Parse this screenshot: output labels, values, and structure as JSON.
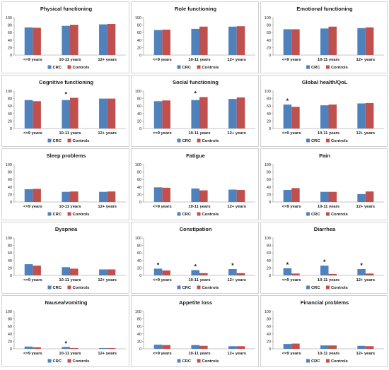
{
  "chart_data": [
    {
      "type": "bar",
      "title": "Physical functioning",
      "categories": [
        "<=9 years",
        "10-11 years",
        "12+ years"
      ],
      "series": [
        {
          "name": "CRC",
          "values": [
            74,
            78,
            82
          ]
        },
        {
          "name": "Controls",
          "values": [
            73,
            81,
            83
          ]
        }
      ],
      "ylim": [
        0,
        100
      ],
      "yticks": [
        0,
        20,
        40,
        60,
        80,
        100
      ],
      "significant": [],
      "legend": "bottom",
      "grid": false
    },
    {
      "type": "bar",
      "title": "Role functioning",
      "categories": [
        "<=9 years",
        "10-11 years",
        "12+ years"
      ],
      "series": [
        {
          "name": "CRC",
          "values": [
            67,
            70,
            76
          ]
        },
        {
          "name": "Controls",
          "values": [
            68,
            76,
            77
          ]
        }
      ],
      "ylim": [
        0,
        100
      ],
      "yticks": [
        0,
        20,
        40,
        60,
        80,
        100
      ],
      "significant": [],
      "legend": "bottom",
      "grid": false
    },
    {
      "type": "bar",
      "title": "Emotional functioning",
      "categories": [
        "<=9 years",
        "10-11 years",
        "12+ years"
      ],
      "series": [
        {
          "name": "CRC",
          "values": [
            69,
            71,
            72
          ]
        },
        {
          "name": "Controls",
          "values": [
            69,
            76,
            74
          ]
        }
      ],
      "ylim": [
        0,
        100
      ],
      "yticks": [
        0,
        20,
        40,
        60,
        80,
        100
      ],
      "significant": [],
      "legend": "bottom",
      "grid": false
    },
    {
      "type": "bar",
      "title": "Cognitive functioning",
      "categories": [
        "<=9 years",
        "10-11 years",
        "12+ years"
      ],
      "series": [
        {
          "name": "CRC",
          "values": [
            76,
            76,
            80
          ]
        },
        {
          "name": "Controls",
          "values": [
            73,
            82,
            80
          ]
        }
      ],
      "ylim": [
        0,
        100
      ],
      "yticks": [
        0,
        20,
        40,
        60,
        80,
        100
      ],
      "significant": [
        1
      ],
      "legend": "bottom",
      "grid": false
    },
    {
      "type": "bar",
      "title": "Social functioning",
      "categories": [
        "<=9 years",
        "10-11 years",
        "12+ years"
      ],
      "series": [
        {
          "name": "CRC",
          "values": [
            73,
            76,
            79
          ]
        },
        {
          "name": "Controls",
          "values": [
            75,
            84,
            83
          ]
        }
      ],
      "ylim": [
        0,
        100
      ],
      "yticks": [
        0,
        20,
        40,
        60,
        80,
        100
      ],
      "significant": [
        1
      ],
      "legend": "bottom",
      "grid": false
    },
    {
      "type": "bar",
      "title": "Global health/QoL",
      "categories": [
        "<=9 years",
        "10-11 years",
        "12+ years"
      ],
      "series": [
        {
          "name": "CRC",
          "values": [
            64,
            62,
            67
          ]
        },
        {
          "name": "Controls",
          "values": [
            58,
            64,
            68
          ]
        }
      ],
      "ylim": [
        0,
        100
      ],
      "yticks": [
        0,
        20,
        40,
        60,
        80,
        100
      ],
      "significant": [
        0
      ],
      "legend": "bottom",
      "grid": false
    },
    {
      "type": "bar",
      "title": "Sleep problems",
      "categories": [
        "<=9 years",
        "10-11 years",
        "12+ years"
      ],
      "series": [
        {
          "name": "CRC",
          "values": [
            34,
            27,
            27
          ]
        },
        {
          "name": "Controls",
          "values": [
            35,
            28,
            28
          ]
        }
      ],
      "ylim": [
        0,
        100
      ],
      "yticks": [
        0,
        20,
        40,
        60,
        80,
        100
      ],
      "significant": [],
      "legend": "bottom",
      "grid": false
    },
    {
      "type": "bar",
      "title": "Fatigue",
      "categories": [
        "<=9 years",
        "10-11 years",
        "12+ years"
      ],
      "series": [
        {
          "name": "CRC",
          "values": [
            39,
            36,
            33
          ]
        },
        {
          "name": "Controls",
          "values": [
            38,
            31,
            32
          ]
        }
      ],
      "ylim": [
        0,
        100
      ],
      "yticks": [
        0,
        20,
        40,
        60,
        80,
        100
      ],
      "significant": [],
      "legend": "bottom",
      "grid": false
    },
    {
      "type": "bar",
      "title": "Pain",
      "categories": [
        "<=9 years",
        "10-11 years",
        "12+ years"
      ],
      "series": [
        {
          "name": "CRC",
          "values": [
            32,
            27,
            21
          ]
        },
        {
          "name": "Controls",
          "values": [
            37,
            27,
            28
          ]
        }
      ],
      "ylim": [
        0,
        100
      ],
      "yticks": [
        0,
        20,
        40,
        60,
        80,
        100
      ],
      "significant": [],
      "legend": "bottom",
      "grid": false
    },
    {
      "type": "bar",
      "title": "Dyspnea",
      "categories": [
        "<=9 years",
        "10-11 years",
        "12+ years"
      ],
      "series": [
        {
          "name": "CRC",
          "values": [
            30,
            22,
            16
          ]
        },
        {
          "name": "Controls",
          "values": [
            26,
            18,
            16
          ]
        }
      ],
      "ylim": [
        0,
        100
      ],
      "yticks": [
        0,
        20,
        40,
        60,
        80,
        100
      ],
      "significant": [],
      "legend": "bottom",
      "grid": false
    },
    {
      "type": "bar",
      "title": "Constipation",
      "categories": [
        "<=9 years",
        "10-11 years",
        "12+ years"
      ],
      "series": [
        {
          "name": "CRC",
          "values": [
            18,
            14,
            17
          ]
        },
        {
          "name": "Controls",
          "values": [
            13,
            6,
            6
          ]
        }
      ],
      "ylim": [
        0,
        100
      ],
      "yticks": [
        0,
        20,
        40,
        60,
        80,
        100
      ],
      "significant": [
        0,
        1,
        2
      ],
      "legend": "bottom",
      "grid": false
    },
    {
      "type": "bar",
      "title": "Diarrhea",
      "categories": [
        "<=9 years",
        "10-11 years",
        "12+ years"
      ],
      "series": [
        {
          "name": "CRC",
          "values": [
            19,
            26,
            17
          ]
        },
        {
          "name": "Controls",
          "values": [
            5,
            4,
            5
          ]
        }
      ],
      "ylim": [
        0,
        100
      ],
      "yticks": [
        0,
        20,
        40,
        60,
        80,
        100
      ],
      "significant": [
        0,
        1,
        2
      ],
      "legend": "bottom",
      "grid": false
    },
    {
      "type": "bar",
      "title": "Nausea/vomiting",
      "categories": [
        "<=9 years",
        "10-11 years",
        "12+ years"
      ],
      "series": [
        {
          "name": "CRC",
          "values": [
            6,
            5,
            2
          ]
        },
        {
          "name": "Controls",
          "values": [
            4,
            2,
            2
          ]
        }
      ],
      "ylim": [
        0,
        100
      ],
      "yticks": [
        0,
        20,
        40,
        60,
        80,
        100
      ],
      "significant": [
        1
      ],
      "legend": "bottom",
      "grid": false
    },
    {
      "type": "bar",
      "title": "Appetite loss",
      "categories": [
        "<=9 years",
        "10-11 years",
        "12+ years"
      ],
      "series": [
        {
          "name": "CRC",
          "values": [
            11,
            10,
            7
          ]
        },
        {
          "name": "Controls",
          "values": [
            10,
            8,
            7
          ]
        }
      ],
      "ylim": [
        0,
        100
      ],
      "yticks": [
        0,
        20,
        40,
        60,
        80,
        100
      ],
      "significant": [],
      "legend": "bottom",
      "grid": false
    },
    {
      "type": "bar",
      "title": "Financial problems",
      "categories": [
        "<=9 years",
        "10-11 years",
        "12+ years"
      ],
      "series": [
        {
          "name": "CRC",
          "values": [
            13,
            9,
            8
          ]
        },
        {
          "name": "Controls",
          "values": [
            14,
            9,
            7
          ]
        }
      ],
      "ylim": [
        0,
        100
      ],
      "yticks": [
        0,
        20,
        40,
        60,
        80,
        100
      ],
      "significant": [],
      "legend": "bottom",
      "grid": false
    }
  ],
  "significance_marker": "*",
  "colors": {
    "CRC": "#4f81bd",
    "Controls": "#c0504d",
    "axis": "#8c8c8c",
    "text": "#1a1a1a"
  }
}
